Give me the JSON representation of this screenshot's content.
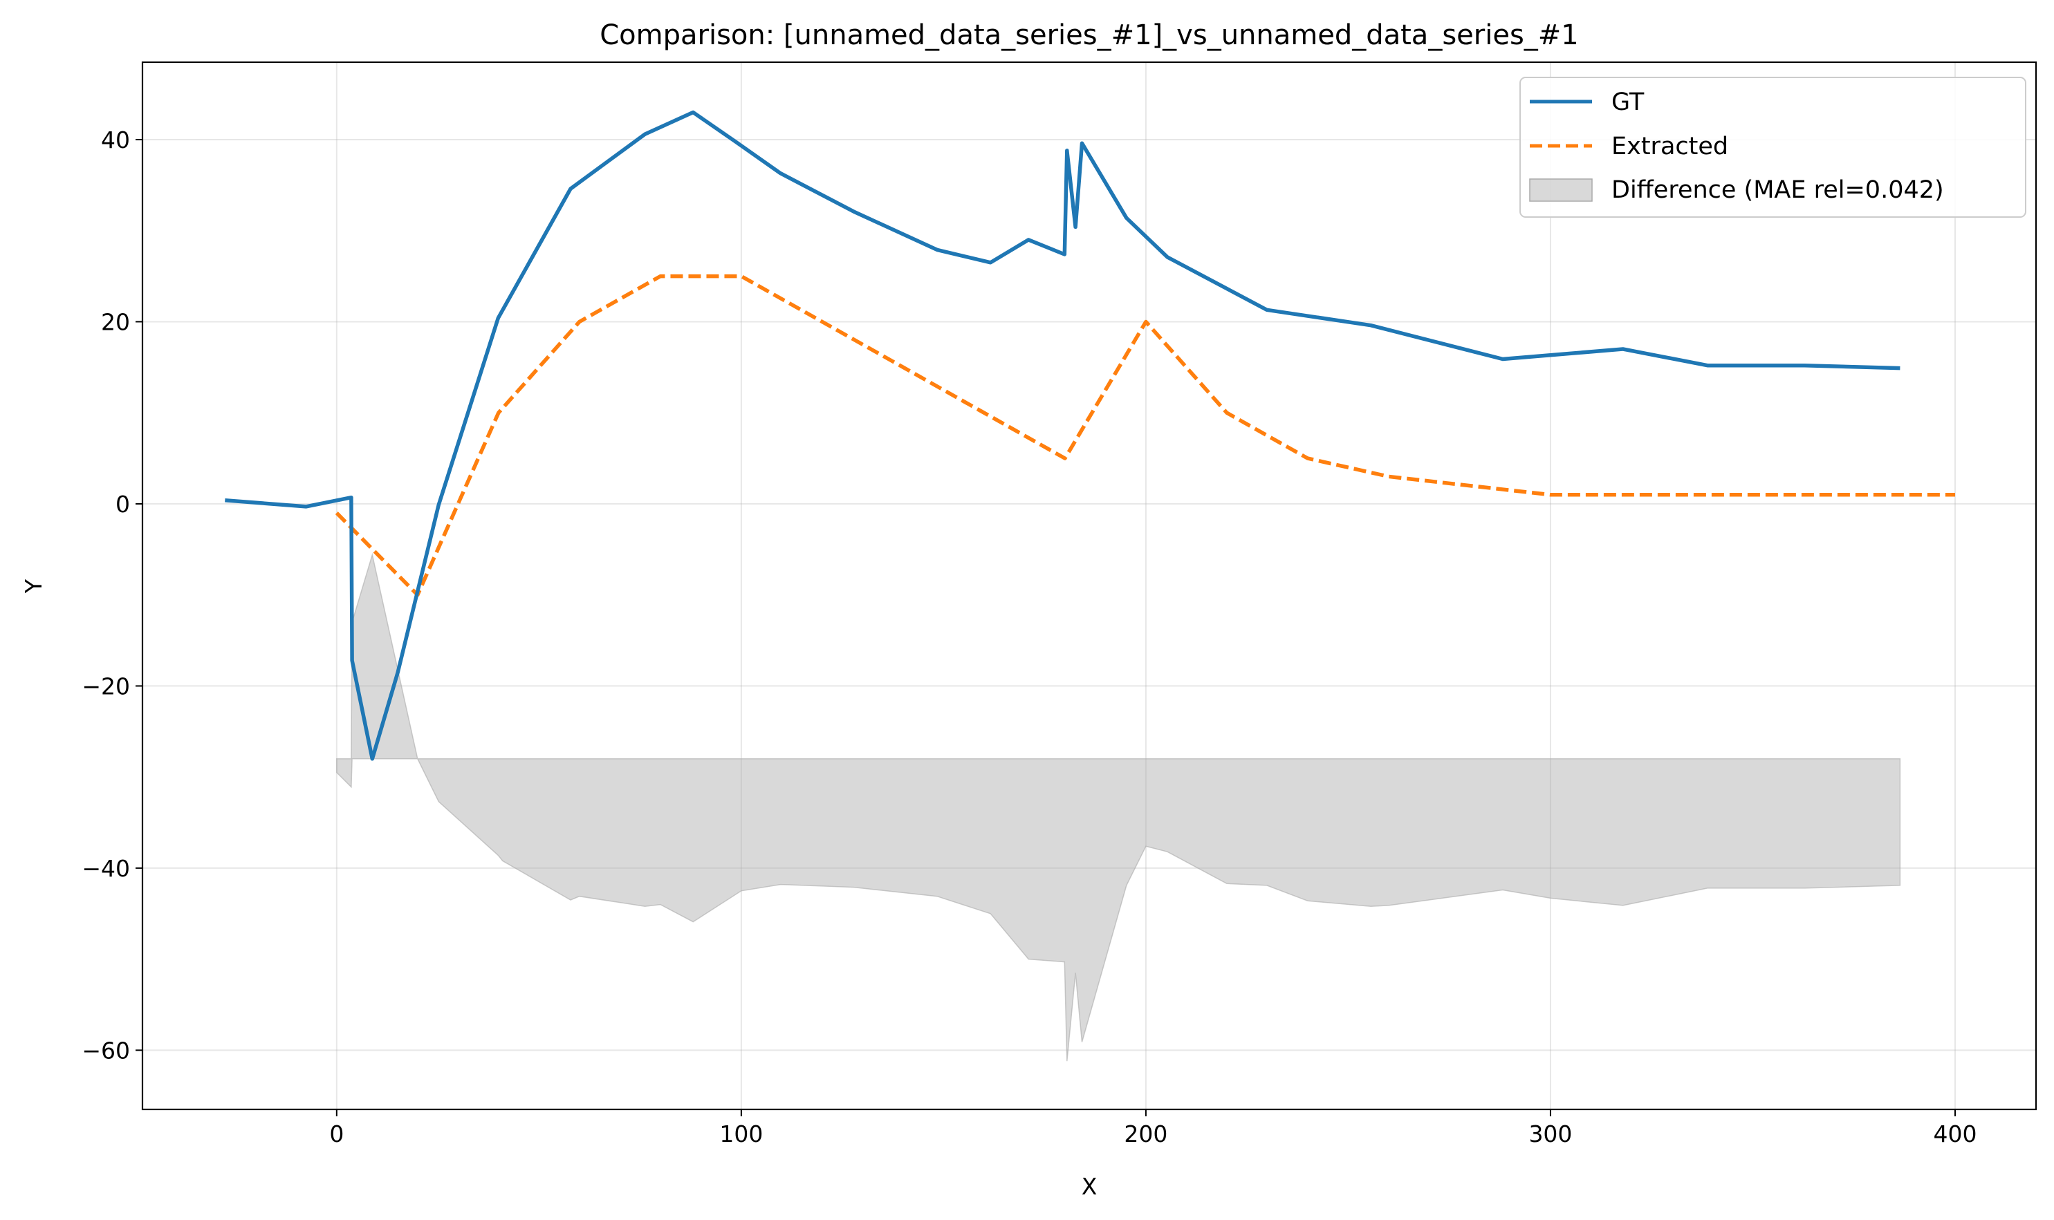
{
  "chart_data": {
    "type": "line",
    "title": "Comparison: [unnamed_data_series_#1]_vs_unnamed_data_series_#1",
    "xlabel": "X",
    "ylabel": "Y",
    "xlim": [
      -48,
      420
    ],
    "ylim": [
      -66.5,
      48.5
    ],
    "xticks": [
      0,
      100,
      200,
      300,
      400
    ],
    "xtick_labels": [
      "0",
      "100",
      "200",
      "300",
      "400"
    ],
    "yticks": [
      -60,
      -40,
      -20,
      0,
      20,
      40
    ],
    "ytick_labels": [
      "−60",
      "−40",
      "−20",
      "0",
      "20",
      "40"
    ],
    "grid": true,
    "legend_position": "upper right",
    "colors": {
      "gt": "#1f77b4",
      "extracted": "#ff7f0e",
      "difference": "#aaaaaa"
    },
    "series": [
      {
        "name": "GT",
        "style": "solid",
        "x": [
          -27.6,
          -7.6,
          3.6,
          3.8,
          8.8,
          15.1,
          25.2,
          39.9,
          57.8,
          76.2,
          88.1,
          98.5,
          109.7,
          127.8,
          148.4,
          161.6,
          171.0,
          179.9,
          180.5,
          182.6,
          184.2,
          195.2,
          205.3,
          229.9,
          255.6,
          288.2,
          317.9,
          338.8,
          362.8,
          386.4
        ],
        "y": [
          0.4,
          -0.3,
          0.7,
          -17.2,
          -28.0,
          -18.5,
          -0.1,
          20.4,
          34.6,
          40.6,
          43.0,
          39.8,
          36.3,
          32.1,
          27.9,
          26.5,
          29.0,
          27.4,
          38.8,
          30.4,
          39.6,
          31.4,
          27.1,
          21.3,
          19.6,
          15.9,
          17.0,
          15.2,
          15.2,
          14.9
        ]
      },
      {
        "name": "Extracted",
        "style": "dashed",
        "x": [
          0,
          20,
          40,
          60,
          80,
          100,
          120,
          140,
          160,
          180,
          200,
          220,
          240,
          260,
          280,
          300,
          320,
          340,
          360,
          380,
          400
        ],
        "y": [
          -1.0,
          -10.0,
          10.0,
          20.0,
          25.0,
          25.0,
          20.0,
          15.0,
          10.0,
          5.0,
          20.0,
          10.0,
          5.0,
          3.0,
          2.0,
          1.0,
          1.0,
          1.0,
          1.0,
          1.0,
          1.0
        ]
      },
      {
        "name": "Difference (MAE rel=0.042)",
        "style": "fill",
        "x": [
          0,
          3.6,
          3.8,
          8.8,
          20,
          25.2,
          39.9,
          41.0,
          57.8,
          60,
          76.2,
          80,
          88.1,
          100,
          109.7,
          127.8,
          148.4,
          161.6,
          171.0,
          179.9,
          180.5,
          182.6,
          184.2,
          195.2,
          200,
          205.3,
          220,
          229.9,
          240,
          255.6,
          260,
          288.2,
          300,
          317.9,
          338.8,
          362.8,
          386.4
        ],
        "upper": [
          -28.0,
          -28.0,
          -13.0,
          -5.6,
          -28.0,
          -28.0,
          -28.0,
          -28.0,
          -28.0,
          -28.0,
          -28.0,
          -28.0,
          -28.0,
          -28.0,
          -28.0,
          -28.0,
          -28.0,
          -28.0,
          -28.0,
          -28.0,
          -28.0,
          -28.0,
          -28.0,
          -28.0,
          -28.0,
          -28.0,
          -28.0,
          -28.0,
          -28.0,
          -28.0,
          -28.0,
          -28.0,
          -28.0,
          -28.0,
          -28.0,
          -28.0,
          -28.0
        ],
        "lower": [
          -29.5,
          -31.1,
          -28.0,
          -28.0,
          -28.0,
          -32.7,
          -38.6,
          -39.2,
          -43.5,
          -43.1,
          -44.2,
          -44.0,
          -45.9,
          -42.5,
          -41.8,
          -42.1,
          -43.1,
          -45.0,
          -50.0,
          -50.3,
          -61.2,
          -51.5,
          -59.1,
          -41.9,
          -37.6,
          -38.2,
          -41.7,
          -41.9,
          -43.6,
          -44.2,
          -44.1,
          -42.4,
          -43.3,
          -44.1,
          -42.2,
          -42.2,
          -41.9
        ]
      }
    ]
  }
}
